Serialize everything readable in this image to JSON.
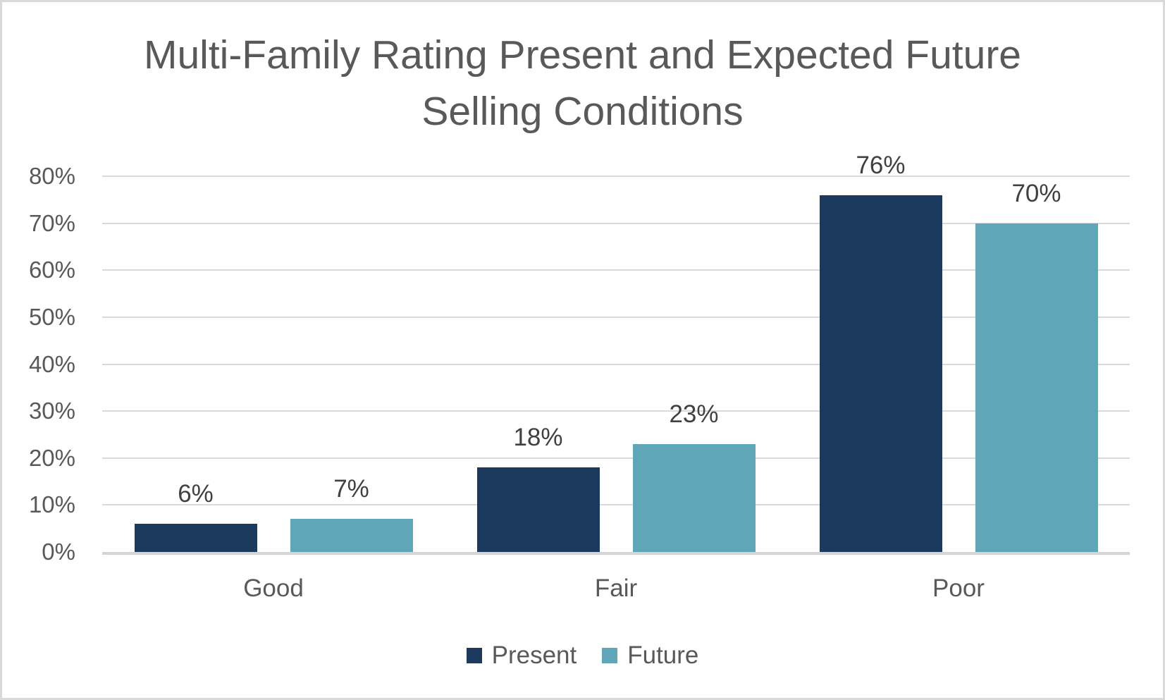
{
  "chart_data": {
    "type": "bar",
    "title": "Multi-Family Rating Present and Expected Future Selling Conditions",
    "title_lines": [
      "Multi-Family Rating Present and Expected Future",
      "Selling Conditions"
    ],
    "categories": [
      "Good",
      "Fair",
      "Poor"
    ],
    "series": [
      {
        "name": "Present",
        "color": "#1c395e",
        "values": [
          6,
          18,
          76
        ]
      },
      {
        "name": "Future",
        "color": "#5fa6b8",
        "values": [
          7,
          23,
          70
        ]
      }
    ],
    "value_suffix": "%",
    "y_axis": {
      "min": 0,
      "max": 80,
      "step": 10,
      "tick_labels": [
        "0%",
        "10%",
        "20%",
        "30%",
        "40%",
        "50%",
        "60%",
        "70%",
        "80%"
      ]
    },
    "grid": true,
    "legend_position": "bottom",
    "colors": {
      "title_text": "#595959",
      "axis_text": "#595959",
      "data_label_text": "#404040",
      "gridline": "#dadada",
      "axis_line": "#d5d5d5",
      "background": "#ffffff",
      "border": "#d9d9d9"
    }
  }
}
